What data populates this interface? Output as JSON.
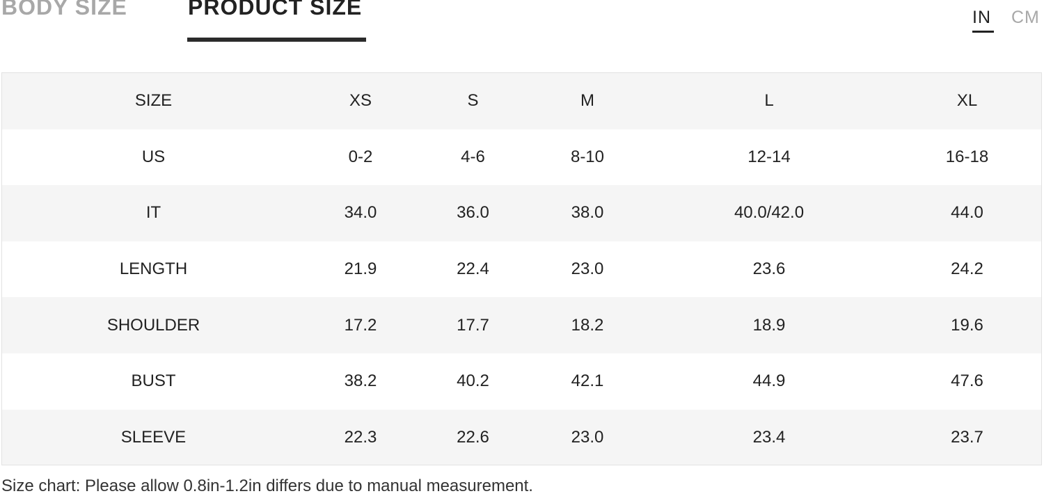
{
  "tabs": {
    "body_size": "BODY SIZE",
    "product_size": "PRODUCT SIZE",
    "active": "product_size"
  },
  "units": {
    "in": "IN",
    "cm": "CM",
    "active": "in"
  },
  "table": {
    "headers": [
      "SIZE",
      "XS",
      "S",
      "M",
      "L",
      "XL"
    ],
    "rows": [
      [
        "US",
        "0-2",
        "4-6",
        "8-10",
        "12-14",
        "16-18"
      ],
      [
        "IT",
        "34.0",
        "36.0",
        "38.0",
        "40.0/42.0",
        "44.0"
      ],
      [
        "LENGTH",
        "21.9",
        "22.4",
        "23.0",
        "23.6",
        "24.2"
      ],
      [
        "SHOULDER",
        "17.2",
        "17.7",
        "18.2",
        "18.9",
        "19.6"
      ],
      [
        "BUST",
        "38.2",
        "40.2",
        "42.1",
        "44.9",
        "47.6"
      ],
      [
        "SLEEVE",
        "22.3",
        "22.6",
        "23.0",
        "23.4",
        "23.7"
      ]
    ]
  },
  "colors": {
    "active_text": "#222222",
    "inactive_text": "#a8a8a8",
    "row_shade": "#f5f5f5"
  },
  "note": "Size chart: Please allow 0.8in-1.2in differs due to manual measurement."
}
